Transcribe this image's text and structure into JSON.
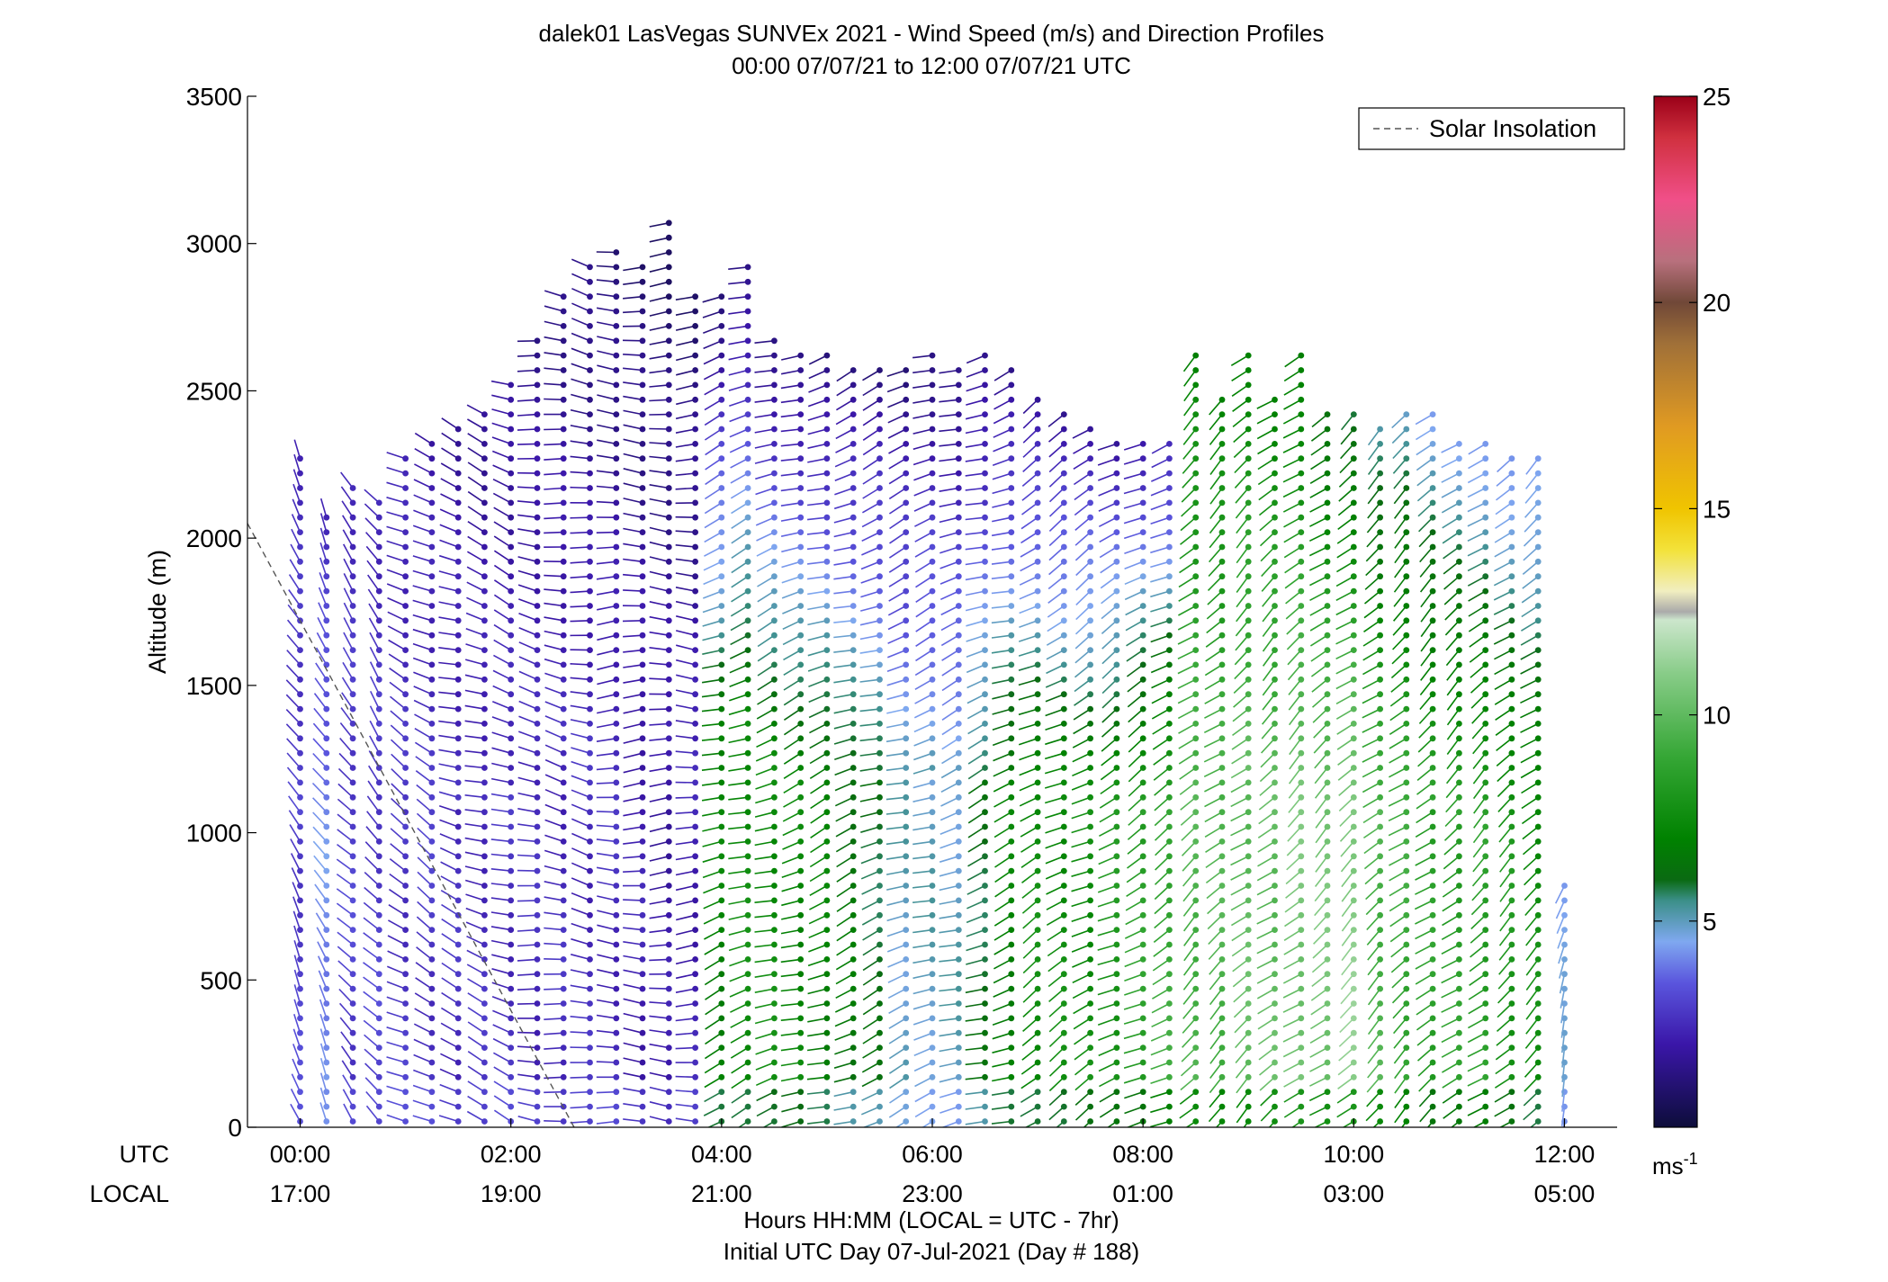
{
  "chart_data": {
    "type": "wind-barb-profile",
    "title": "dalek01 LasVegas SUNVEx 2021 - Wind Speed (m/s) and Direction Profiles",
    "subtitle": "00:00 07/07/21 to 12:00 07/07/21  UTC",
    "ylabel": "Altitude (m)",
    "xlabel": "Hours HH:MM  (LOCAL = UTC - 7hr)",
    "xlabel2": "Initial UTC Day 07-Jul-2021 (Day # 188)",
    "row_label_utc": "UTC",
    "row_label_local": "LOCAL",
    "x_utc_ticks": [
      "00:00",
      "02:00",
      "04:00",
      "06:00",
      "08:00",
      "10:00",
      "12:00"
    ],
    "x_local_ticks": [
      "17:00",
      "19:00",
      "21:00",
      "23:00",
      "01:00",
      "03:00",
      "05:00"
    ],
    "xlim_hours": [
      -0.5,
      12.5
    ],
    "ylim": [
      0,
      3500
    ],
    "y_ticks": [
      0,
      500,
      1000,
      1500,
      2000,
      2500,
      3000,
      3500
    ],
    "legend": {
      "label": "Solar Insolation",
      "position": "top-right"
    },
    "solar_insolation_line": {
      "x": [
        -0.5,
        2.6
      ],
      "y": [
        2050,
        0
      ]
    },
    "colorbar": {
      "label": "ms",
      "label_sup": "-1",
      "min": 0,
      "max": 25,
      "ticks": [
        5,
        10,
        15,
        20,
        25
      ],
      "stops": [
        {
          "v": 0,
          "c": "#0d0d3a"
        },
        {
          "v": 2,
          "c": "#3a16a8"
        },
        {
          "v": 3.5,
          "c": "#5a55dd"
        },
        {
          "v": 4.5,
          "c": "#7fa8f0"
        },
        {
          "v": 5.5,
          "c": "#3b8f88"
        },
        {
          "v": 6,
          "c": "#0a6a12"
        },
        {
          "v": 7,
          "c": "#008200"
        },
        {
          "v": 9,
          "c": "#36a736"
        },
        {
          "v": 11,
          "c": "#88cc88"
        },
        {
          "v": 12.3,
          "c": "#cce6cc"
        },
        {
          "v": 12.5,
          "c": "#aaaaaa"
        },
        {
          "v": 13,
          "c": "#f1eec0"
        },
        {
          "v": 14,
          "c": "#f3e23a"
        },
        {
          "v": 15,
          "c": "#f0c400"
        },
        {
          "v": 17,
          "c": "#e09a22"
        },
        {
          "v": 19,
          "c": "#a07038"
        },
        {
          "v": 20,
          "c": "#704838"
        },
        {
          "v": 21,
          "c": "#b8707d"
        },
        {
          "v": 22.5,
          "c": "#f04f88"
        },
        {
          "v": 24,
          "c": "#d0303f"
        },
        {
          "v": 25,
          "c": "#9a0018"
        }
      ]
    },
    "profiles": [
      {
        "t": 0.0,
        "top": 2300,
        "dir": 330,
        "spd_low": 3.0,
        "spd_high": 2.5
      },
      {
        "t": 0.25,
        "top": 2100,
        "dir": 330,
        "spd_low": 4.2,
        "spd_high": 2.5
      },
      {
        "t": 0.5,
        "top": 2200,
        "dir": 320,
        "spd_low": 3.0,
        "spd_high": 2.5
      },
      {
        "t": 0.75,
        "top": 2150,
        "dir": 320,
        "spd_low": 3.0,
        "spd_high": 2.4
      },
      {
        "t": 1.0,
        "top": 2300,
        "dir": 300,
        "spd_low": 2.8,
        "spd_high": 2.2
      },
      {
        "t": 1.25,
        "top": 2320,
        "dir": 300,
        "spd_low": 2.8,
        "spd_high": 2.0
      },
      {
        "t": 1.5,
        "top": 2400,
        "dir": 290,
        "spd_low": 2.6,
        "spd_high": 1.8
      },
      {
        "t": 1.75,
        "top": 2450,
        "dir": 290,
        "spd_low": 2.6,
        "spd_high": 1.6
      },
      {
        "t": 2.0,
        "top": 2550,
        "dir": 290,
        "spd_low": 2.6,
        "spd_high": 1.6
      },
      {
        "t": 2.25,
        "top": 2700,
        "dir": 280,
        "spd_low": 2.5,
        "spd_high": 1.5
      },
      {
        "t": 2.5,
        "top": 2850,
        "dir": 280,
        "spd_low": 2.5,
        "spd_high": 1.4
      },
      {
        "t": 2.75,
        "top": 2950,
        "dir": 280,
        "spd_low": 2.5,
        "spd_high": 1.2
      },
      {
        "t": 3.0,
        "top": 3000,
        "dir": 270,
        "spd_low": 2.5,
        "spd_high": 1.0
      },
      {
        "t": 3.25,
        "top": 2950,
        "dir": 270,
        "spd_low": 2.2,
        "spd_high": 1.0
      },
      {
        "t": 3.5,
        "top": 3100,
        "dir": 270,
        "spd_low": 2.0,
        "spd_high": 0.8
      },
      {
        "t": 3.75,
        "top": 2850,
        "dir": 270,
        "spd_low": 2.2,
        "spd_high": 1.0
      },
      {
        "t": 4.0,
        "top": 2850,
        "dir": 250,
        "spd_low": 7.0,
        "spd_high": 1.0
      },
      {
        "t": 4.25,
        "top": 2950,
        "dir": 250,
        "spd_low": 7.5,
        "spd_high": 1.0
      },
      {
        "t": 4.5,
        "top": 2700,
        "dir": 250,
        "spd_low": 7.5,
        "spd_high": 1.0
      },
      {
        "t": 4.75,
        "top": 2650,
        "dir": 250,
        "spd_low": 7.2,
        "spd_high": 1.0
      },
      {
        "t": 5.0,
        "top": 2620,
        "dir": 250,
        "spd_low": 7.0,
        "spd_high": 1.0
      },
      {
        "t": 5.25,
        "top": 2580,
        "dir": 250,
        "spd_low": 6.5,
        "spd_high": 1.2
      },
      {
        "t": 5.5,
        "top": 2600,
        "dir": 250,
        "spd_low": 6.0,
        "spd_high": 1.2
      },
      {
        "t": 5.75,
        "top": 2600,
        "dir": 250,
        "spd_low": 5.0,
        "spd_high": 1.2
      },
      {
        "t": 6.0,
        "top": 2650,
        "dir": 250,
        "spd_low": 5.0,
        "spd_high": 1.2
      },
      {
        "t": 6.25,
        "top": 2600,
        "dir": 250,
        "spd_low": 5.0,
        "spd_high": 1.2
      },
      {
        "t": 6.5,
        "top": 2650,
        "dir": 250,
        "spd_low": 6.0,
        "spd_high": 1.2
      },
      {
        "t": 6.75,
        "top": 2600,
        "dir": 250,
        "spd_low": 7.0,
        "spd_high": 1.2
      },
      {
        "t": 7.0,
        "top": 2500,
        "dir": 240,
        "spd_low": 7.5,
        "spd_high": 1.5
      },
      {
        "t": 7.25,
        "top": 2450,
        "dir": 240,
        "spd_low": 7.5,
        "spd_high": 1.5
      },
      {
        "t": 7.5,
        "top": 2400,
        "dir": 240,
        "spd_low": 7.5,
        "spd_high": 1.8
      },
      {
        "t": 7.75,
        "top": 2350,
        "dir": 240,
        "spd_low": 8.0,
        "spd_high": 1.8
      },
      {
        "t": 8.0,
        "top": 2350,
        "dir": 240,
        "spd_low": 8.5,
        "spd_high": 2.0
      },
      {
        "t": 8.25,
        "top": 2350,
        "dir": 240,
        "spd_low": 9.0,
        "spd_high": 2.2
      },
      {
        "t": 8.5,
        "top": 2650,
        "dir": 230,
        "spd_low": 9.5,
        "spd_high": 7.0
      },
      {
        "t": 8.75,
        "top": 2500,
        "dir": 230,
        "spd_low": 9.5,
        "spd_high": 7.0
      },
      {
        "t": 9.0,
        "top": 2650,
        "dir": 230,
        "spd_low": 10.0,
        "spd_high": 7.0
      },
      {
        "t": 9.25,
        "top": 2500,
        "dir": 230,
        "spd_low": 10.0,
        "spd_high": 7.0
      },
      {
        "t": 9.5,
        "top": 2650,
        "dir": 230,
        "spd_low": 10.5,
        "spd_high": 6.5
      },
      {
        "t": 9.75,
        "top": 2450,
        "dir": 230,
        "spd_low": 10.5,
        "spd_high": 6.0
      },
      {
        "t": 10.0,
        "top": 2450,
        "dir": 230,
        "spd_low": 11.0,
        "spd_high": 5.5
      },
      {
        "t": 10.25,
        "top": 2400,
        "dir": 230,
        "spd_low": 9.5,
        "spd_high": 5.0
      },
      {
        "t": 10.5,
        "top": 2450,
        "dir": 230,
        "spd_low": 9.0,
        "spd_high": 5.0
      },
      {
        "t": 10.75,
        "top": 2450,
        "dir": 230,
        "spd_low": 8.5,
        "spd_high": 4.5
      },
      {
        "t": 11.0,
        "top": 2350,
        "dir": 230,
        "spd_low": 8.5,
        "spd_high": 4.5
      },
      {
        "t": 11.25,
        "top": 2350,
        "dir": 230,
        "spd_low": 8.5,
        "spd_high": 4.2
      },
      {
        "t": 11.5,
        "top": 2300,
        "dir": 230,
        "spd_low": 8.0,
        "spd_high": 4.0
      },
      {
        "t": 11.75,
        "top": 2300,
        "dir": 230,
        "spd_low": 7.5,
        "spd_high": 4.0
      },
      {
        "t": 12.0,
        "top": 850,
        "dir": 200,
        "spd_low": 4.5,
        "spd_high": 4.5
      }
    ]
  }
}
